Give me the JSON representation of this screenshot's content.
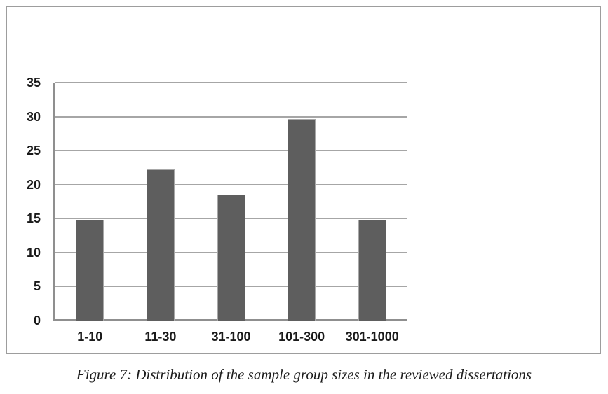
{
  "caption": "Figure 7: Distribution of the sample group sizes in the reviewed dissertations",
  "colors": {
    "bar_fill": "#5e5e5e",
    "bar_edge": "#a8a8a8",
    "gridline": "#a6a6a6",
    "axis_line": "#8f8f8f",
    "frame_border": "#9d9d9d",
    "label_text": "#1a1a1a",
    "background": "#ffffff"
  },
  "chart_data": {
    "type": "bar",
    "categories": [
      "1-10",
      "11-30",
      "31-100",
      "101-300",
      "301-1000"
    ],
    "values": [
      14.8,
      22.2,
      18.5,
      29.6,
      14.8
    ],
    "title": "",
    "xlabel": "",
    "ylabel": "",
    "ylim": [
      0,
      35
    ],
    "yticks": [
      0,
      5,
      10,
      15,
      20,
      25,
      30,
      35
    ],
    "grid": true,
    "legend": false,
    "bar_color": "#5e5e5e"
  }
}
